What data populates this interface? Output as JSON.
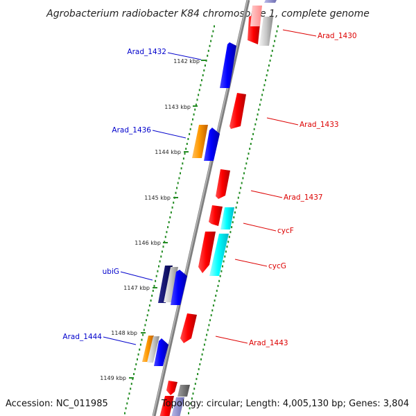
{
  "title": "Agrobacterium radiobacter K84 chromosome 1, complete genome",
  "footer": {
    "accession": "Accession: NC_011985",
    "topology": "Topology: circular; Length: 4,005,130 bp; Genes: 3,804"
  },
  "colors": {
    "backbone": "#808080",
    "tick": "#228B22",
    "label_left": "#0000CC",
    "label_right": "#DD0000"
  },
  "kbp_labels": [
    "1142 kbp",
    "1143 kbp",
    "1144 kbp",
    "1145 kbp",
    "1146 kbp",
    "1147 kbp",
    "1148 kbp",
    "1149 kbp"
  ],
  "genes": [
    {
      "label": "Arad_1430",
      "color": "#FF0000"
    },
    {
      "label": "Arad_1432",
      "color": "#0000FF"
    },
    {
      "label": "Arad_1433",
      "color": "#FF0000"
    },
    {
      "label": "Arad_1436",
      "color": "#0000FF"
    },
    {
      "label": "Arad_1437",
      "color": "#FF0000"
    },
    {
      "label": "cycF",
      "color": "#00FFFF"
    },
    {
      "label": "cycG",
      "color": "#00FFFF"
    },
    {
      "label": "ubiG",
      "color": "#0000FF"
    },
    {
      "label": "Arad_1443",
      "color": "#FF0000"
    },
    {
      "label": "Arad_1444",
      "color": "#0000FF"
    }
  ]
}
